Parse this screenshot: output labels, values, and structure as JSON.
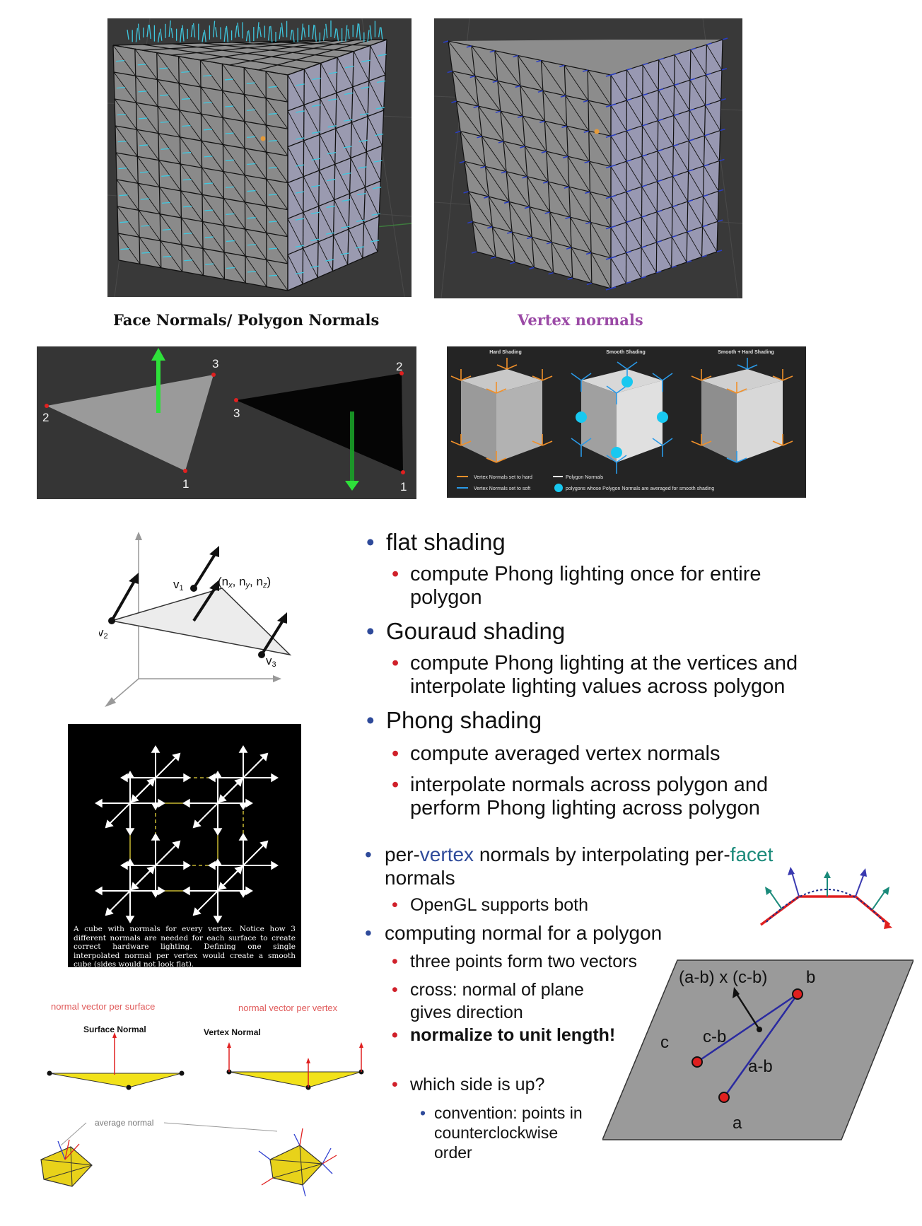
{
  "captions": {
    "face_normals": "Face Normals/ Polygon Normals",
    "vertex_normals": "Vertex normals"
  },
  "colors": {
    "caption_purple": "#9b4aa6",
    "bullet_blue": "#2e4a9a",
    "bullet_red": "#d0202a",
    "vertex_word": "#2e4a9a",
    "facet_word": "#1a8a7a"
  },
  "triangles": {
    "left_labels": [
      "1",
      "2",
      "3"
    ],
    "right_labels": [
      "1",
      "2",
      "3"
    ]
  },
  "shading_panel": {
    "titles": [
      "Hard Shading",
      "Smooth Shading",
      "Smooth + Hard Shading"
    ],
    "legend_hard": "Vertex Normals set to hard",
    "legend_polygon": "Polygon Normals",
    "legend_soft": "Vertex Normals set to soft",
    "legend_averaged": "polygons whose Polygon Normals are averaged for smooth shading"
  },
  "axis_diagram": {
    "v1": "v",
    "v1_sub": "1",
    "v2": "v",
    "v2_sub": "2",
    "v3": "v",
    "v3_sub": "3",
    "normal_label": "(n",
    "nx_sub": "x",
    "ny_mid": ", n",
    "ny_sub": "y",
    "nz_mid": ", n",
    "nz_sub": "z",
    "normal_close": ")"
  },
  "cube_caption": "A cube with normals for every vertex. Notice how 3 different normals are needed for each surface to create correct hardware lighting. Defining one single interpolated normal per vertex would create a smooth cube (sides would not look flat).",
  "surface_diagram": {
    "per_surface": "normal vector per surface",
    "per_vertex": "normal vector per vertex",
    "surface_normal": "Surface Normal",
    "vertex_normal": "Vertex Normal",
    "average_normal": "average normal"
  },
  "bullets": {
    "flat": "flat shading",
    "flat_sub": "compute Phong lighting once for entire",
    "flat_sub2": "polygon",
    "gouraud": "Gouraud shading",
    "gouraud_sub": "compute Phong lighting at the vertices and",
    "gouraud_sub2": "interpolate lighting values across polygon",
    "phong": "Phong shading",
    "phong_sub1": "compute averaged vertex normals",
    "phong_sub2": "interpolate normals across polygon and",
    "phong_sub2b": "perform Phong lighting across polygon",
    "per_prefix": "per-",
    "per_vertex_word": "vertex",
    "per_mid": " normals by interpolating per-",
    "per_facet_word": "facet",
    "per_line2": "normals",
    "opengl": "OpenGL supports both",
    "computing": "computing normal for a polygon",
    "three_points": "three points form two vectors",
    "cross": "cross: normal of plane",
    "cross2": "gives direction",
    "normalize": "normalize to unit length!",
    "which_side": "which side is up?",
    "convention": "convention: points in",
    "convention2": "counterclockwise",
    "convention3": "order"
  },
  "cross_diagram": {
    "formula": "(a-b) x (c-b)",
    "b": "b",
    "c": "c",
    "cb": "c-b",
    "ab": "a-b",
    "a": "a"
  }
}
